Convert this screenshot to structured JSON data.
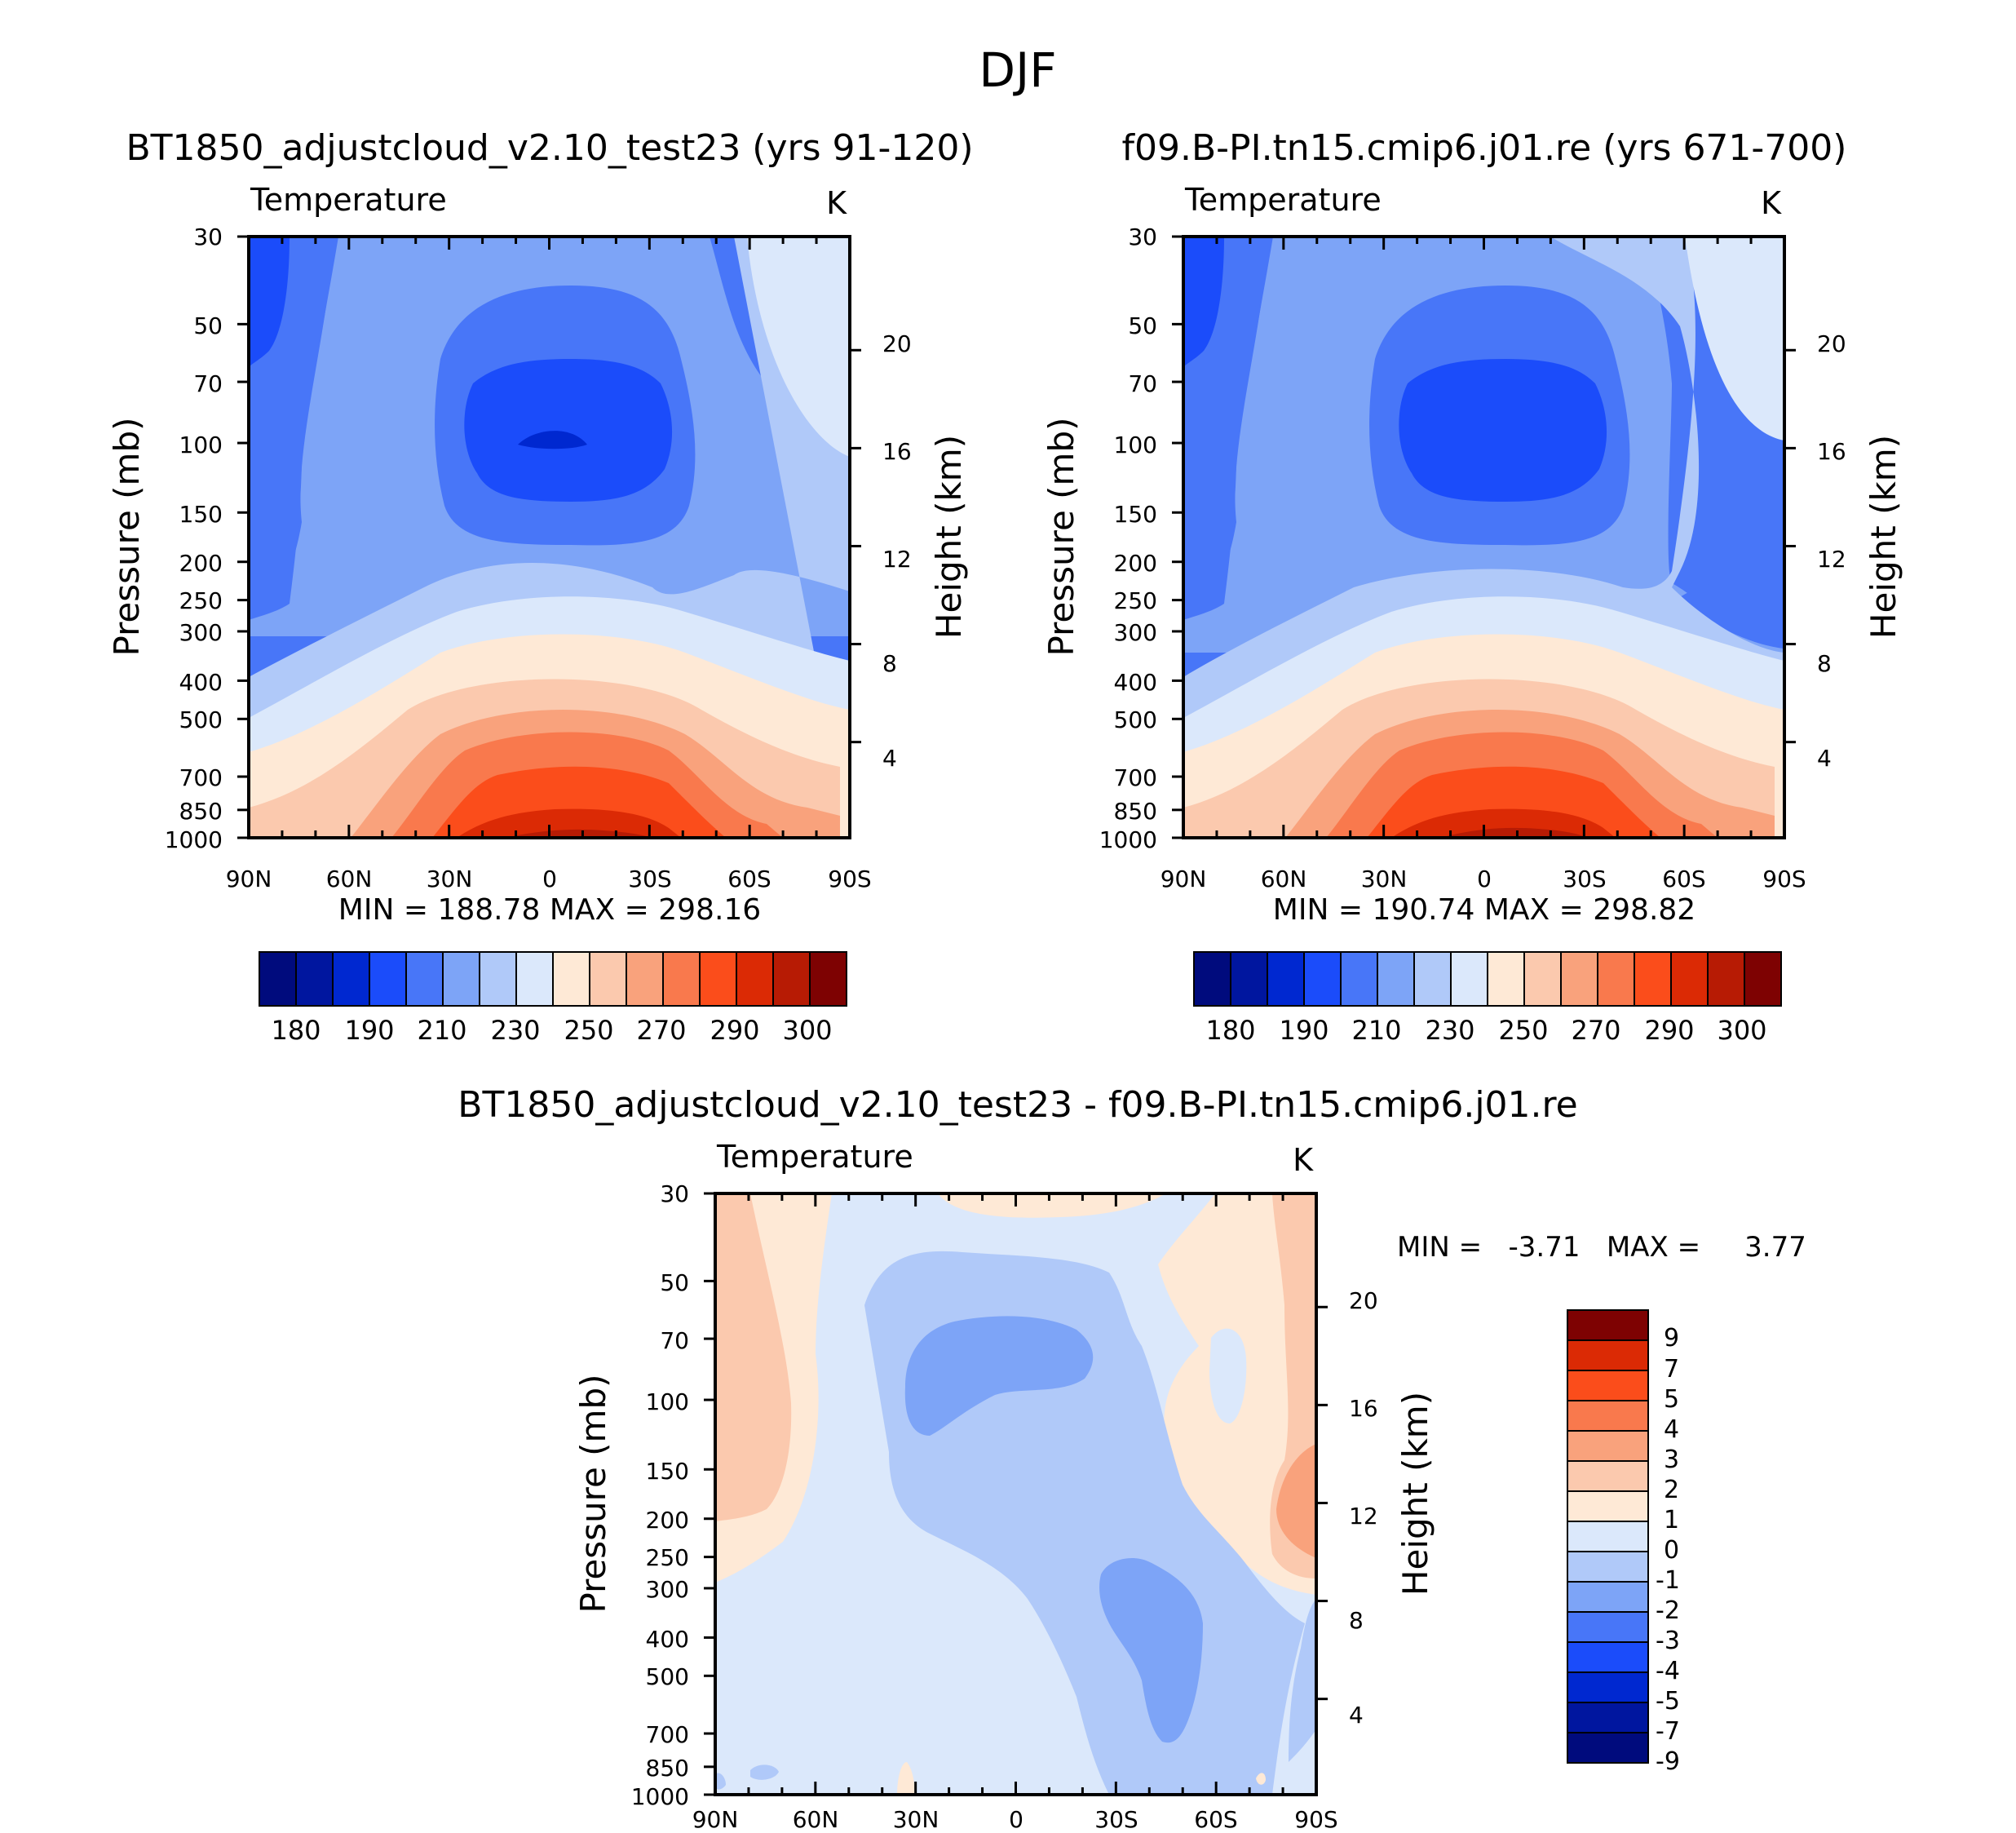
{
  "figure": {
    "title": "DJF",
    "units": "K",
    "variable": "Temperature",
    "y_left_label": "Pressure  (mb)",
    "y_right_label": "Height  (km)"
  },
  "palette": {
    "abs": [
      "#000b7d",
      "#00169f",
      "#0028d0",
      "#1b4cfa",
      "#4876f8",
      "#7da4f7",
      "#b0c9f9",
      "#dbe8fb",
      "#fee9d6",
      "#fbc9ae",
      "#f9a27c",
      "#f9794d",
      "#fb4d1b",
      "#db2a05",
      "#b71b04",
      "#7e0202"
    ],
    "diff": [
      "#000b7d",
      "#00169f",
      "#0028d0",
      "#1b4cfa",
      "#4876f8",
      "#7da4f7",
      "#b0c9f9",
      "#dbe8fb",
      "#fee9d6",
      "#fbc9ae",
      "#f9a27c",
      "#f9794d",
      "#fb4d1b",
      "#db2a05",
      "#7e0202"
    ]
  },
  "chart_data": [
    {
      "type": "contour",
      "title": "BT1850_adjustcloud_v2.10_test23 (yrs 91-120)",
      "left_label": "Temperature",
      "right_label": "K",
      "x_ticks": [
        "90N",
        "60N",
        "30N",
        "0",
        "30S",
        "60S",
        "90S"
      ],
      "y_ticks": [
        "30",
        "50",
        "70",
        "100",
        "150",
        "200",
        "250",
        "300",
        "400",
        "500",
        "700",
        "850",
        "1000"
      ],
      "height_ticks": [
        "20",
        "16",
        "12",
        "8",
        "4"
      ],
      "min": 188.78,
      "max": 298.16,
      "stats_text": "MIN = 188.78   MAX = 298.16",
      "colorbar_labels": [
        "180",
        "190",
        "210",
        "230",
        "250",
        "270",
        "290",
        "300"
      ]
    },
    {
      "type": "contour",
      "title": "f09.B-PI.tn15.cmip6.j01.re (yrs 671-700)",
      "left_label": "Temperature",
      "right_label": "K",
      "x_ticks": [
        "90N",
        "60N",
        "30N",
        "0",
        "30S",
        "60S",
        "90S"
      ],
      "y_ticks": [
        "30",
        "50",
        "70",
        "100",
        "150",
        "200",
        "250",
        "300",
        "400",
        "500",
        "700",
        "850",
        "1000"
      ],
      "height_ticks": [
        "20",
        "16",
        "12",
        "8",
        "4"
      ],
      "min": 190.74,
      "max": 298.82,
      "stats_text": "MIN = 190.74   MAX = 298.82",
      "colorbar_labels": [
        "180",
        "190",
        "210",
        "230",
        "250",
        "270",
        "290",
        "300"
      ]
    },
    {
      "type": "contour",
      "title": "BT1850_adjustcloud_v2.10_test23 - f09.B-PI.tn15.cmip6.j01.re",
      "left_label": "Temperature",
      "right_label": "K",
      "x_ticks": [
        "90N",
        "60N",
        "30N",
        "0",
        "30S",
        "60S",
        "90S"
      ],
      "y_ticks": [
        "30",
        "50",
        "70",
        "100",
        "150",
        "200",
        "250",
        "300",
        "400",
        "500",
        "700",
        "850",
        "1000"
      ],
      "height_ticks": [
        "20",
        "16",
        "12",
        "8",
        "4"
      ],
      "min": -3.71,
      "max": 3.77,
      "stats_text": "MIN =   -3.71   MAX =     3.77",
      "colorbar_labels": [
        "9",
        "7",
        "5",
        "4",
        "3",
        "2",
        "1",
        "0",
        "-1",
        "-2",
        "-3",
        "-4",
        "-5",
        "-7",
        "-9"
      ]
    }
  ]
}
